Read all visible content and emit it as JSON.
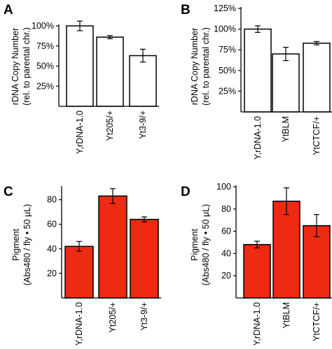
{
  "style": {
    "bar_fill_AB": "#ffffff",
    "bar_fill_CD": "#ee2a12",
    "bar_stroke": "#000000",
    "axis_color": "#000000"
  },
  "chart_data": [
    {
      "panel": "A",
      "type": "bar",
      "categories": [
        "Y,rDNA-1.0",
        "Yt205/+",
        "Yt3-9/+"
      ],
      "values": [
        100,
        86,
        63
      ],
      "errors": [
        6,
        2,
        8
      ],
      "ylabel": [
        "rDNA Copy Number",
        "(rel. to parental chr.)"
      ],
      "ylim": [
        0,
        100
      ],
      "yticks": [
        25,
        50,
        75,
        100
      ],
      "ytick_labels": [
        "25%",
        "50%",
        "75%",
        "100%"
      ],
      "grid": false,
      "legend": "none"
    },
    {
      "panel": "B",
      "type": "bar",
      "categories": [
        "Y,rDNA-1.0",
        "YtBLM",
        "YtCTCF/+"
      ],
      "values": [
        100,
        70,
        83
      ],
      "errors": [
        4,
        8,
        2
      ],
      "ylabel": [
        "rDNA Copy Number",
        "(rel. to parental chr.)"
      ],
      "ylim": [
        0,
        125
      ],
      "yticks": [
        25,
        50,
        75,
        100,
        125
      ],
      "ytick_labels": [
        "25%",
        "50%",
        "75%",
        "100%",
        "125%"
      ],
      "grid": false,
      "legend": "none"
    },
    {
      "panel": "C",
      "type": "bar",
      "categories": [
        "Y,rDNA-1.0",
        "Yt205/+",
        "Yt3-9/+"
      ],
      "values": [
        42,
        83,
        64
      ],
      "errors": [
        4,
        6,
        2
      ],
      "ylabel": [
        "Pigment",
        "(Abs480 / fly • 50 μL)"
      ],
      "ylim": [
        0,
        90
      ],
      "yticks": [
        20,
        40,
        60,
        80
      ],
      "ytick_labels": [
        "20",
        "40",
        "60",
        "80"
      ],
      "grid": false,
      "legend": "none"
    },
    {
      "panel": "D",
      "type": "bar",
      "categories": [
        "Y,rDNA-1.0",
        "YtBLM",
        "YtCTCF/+"
      ],
      "values": [
        48,
        87,
        65
      ],
      "errors": [
        3,
        12,
        10
      ],
      "ylabel": [
        "Pigment",
        "(Abs480 / fly • 50 μL)"
      ],
      "ylim": [
        0,
        100
      ],
      "yticks": [
        20,
        40,
        60,
        80,
        100
      ],
      "ytick_labels": [
        "20",
        "40",
        "60",
        "80",
        "100"
      ],
      "grid": false,
      "legend": "none"
    }
  ]
}
